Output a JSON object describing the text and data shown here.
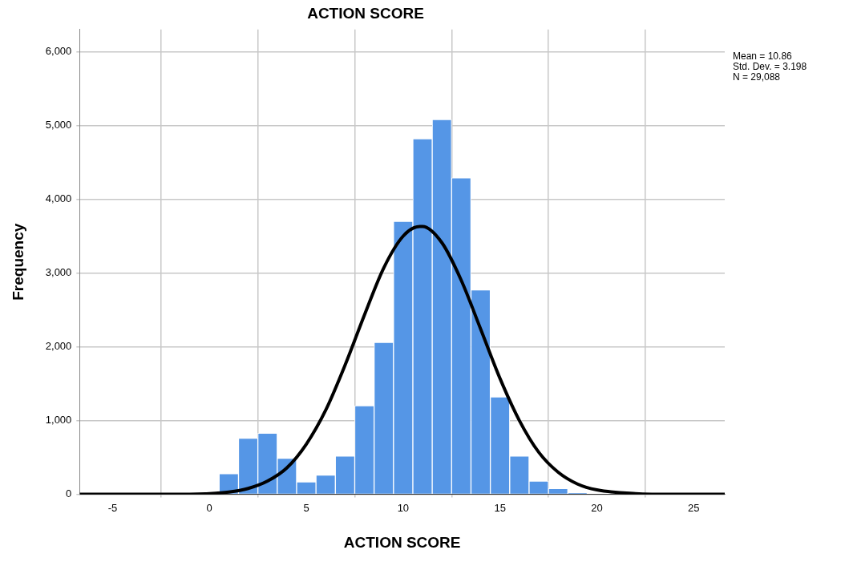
{
  "chart_data": {
    "type": "histogram",
    "title": "ACTION SCORE",
    "xlabel": "ACTION SCORE",
    "ylabel": "Frequency",
    "bins": [
      0.5,
      1.5,
      2.5,
      3.5,
      4.5,
      5.5,
      6.5,
      7.5,
      8.5,
      9.5,
      10.5,
      11.5,
      12.5,
      13.5,
      14.5,
      15.5,
      16.5,
      17.5,
      18.5,
      19.5,
      20.5
    ],
    "values": [
      280,
      760,
      830,
      490,
      170,
      260,
      520,
      1200,
      2060,
      3700,
      4820,
      5080,
      4290,
      2770,
      1320,
      520,
      180,
      80,
      20,
      null
    ],
    "color": "#5596e6",
    "series": [
      {
        "type": "line",
        "color": "#000000",
        "x": [
          -6.7,
          -2,
          0,
          1,
          2,
          3,
          4,
          5,
          6,
          7,
          8,
          9,
          10,
          10.86,
          11,
          12,
          13,
          14,
          15,
          16,
          17,
          18,
          19,
          20,
          22,
          24,
          26.6
        ],
        "values": [
          0,
          0,
          10,
          30,
          80,
          180,
          360,
          680,
          1140,
          1750,
          2430,
          3070,
          3500,
          3630,
          3630,
          3410,
          2900,
          2240,
          1570,
          1000,
          570,
          300,
          140,
          60,
          10,
          0,
          0
        ]
      }
    ],
    "xlim": [
      -6.7,
      26.6
    ],
    "xticks": [
      -5,
      0,
      5,
      10,
      15,
      20,
      25
    ],
    "ylim": [
      0,
      6300
    ],
    "yticks": [
      0,
      {
        "value": 1000,
        "label": "1,000"
      },
      {
        "value": 2000,
        "label": "2,000"
      },
      {
        "value": 3000,
        "label": "3,000"
      },
      {
        "value": 4000,
        "label": "4,000"
      },
      {
        "value": 5000,
        "label": "5,000"
      },
      {
        "value": 6000,
        "label": "6,000"
      }
    ],
    "grid": true,
    "annotations": [
      "Mean = 10.86",
      "Std. Dev. = 3.198",
      "N = 29,088"
    ]
  }
}
